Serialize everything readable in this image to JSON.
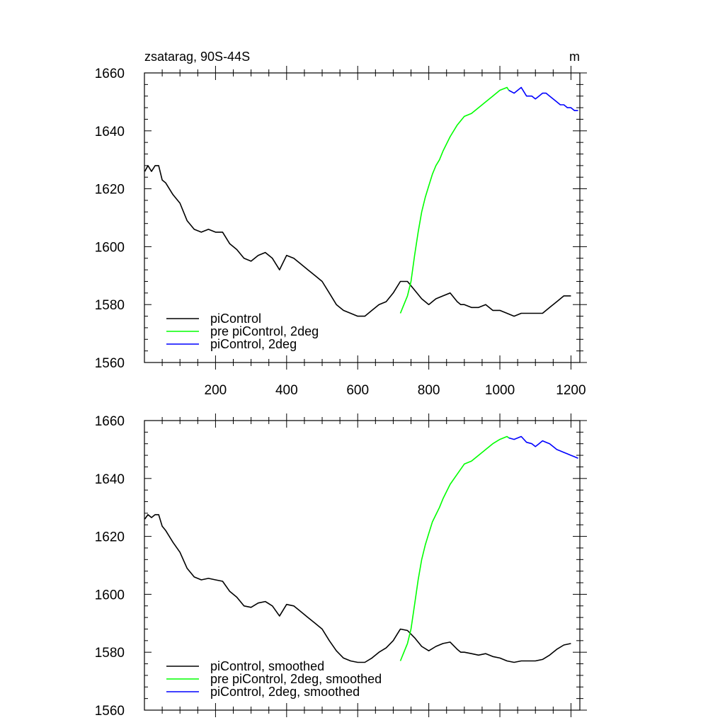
{
  "figure": {
    "title_left": "zsatarag, 90S-44S",
    "title_right": "m"
  },
  "colors": {
    "piControl": "#000000",
    "pre_piControl_2deg": "#00ff00",
    "piControl_2deg": "#0000ff"
  },
  "chart_data": [
    {
      "type": "line",
      "xlim": [
        0,
        1225
      ],
      "ylim": [
        1560,
        1660
      ],
      "x_ticks": [
        200,
        400,
        600,
        800,
        1000,
        1200
      ],
      "x_tick_labels": [
        "200",
        "400",
        "600",
        "800",
        "1000",
        "1200"
      ],
      "y_ticks": [
        1560,
        1580,
        1600,
        1620,
        1640,
        1660
      ],
      "y_tick_labels": [
        "1560",
        "1580",
        "1600",
        "1620",
        "1640",
        "1660"
      ],
      "show_x_tick_labels": true,
      "legend_position": "bottom-left",
      "series": [
        {
          "name": "piControl",
          "color_key": "piControl",
          "x": [
            1,
            10,
            20,
            30,
            40,
            50,
            60,
            80,
            100,
            120,
            140,
            160,
            180,
            200,
            220,
            240,
            260,
            280,
            300,
            320,
            340,
            360,
            380,
            400,
            420,
            440,
            460,
            480,
            500,
            520,
            540,
            560,
            580,
            600,
            620,
            640,
            660,
            680,
            700,
            710,
            720,
            740,
            760,
            780,
            800,
            820,
            840,
            860,
            880,
            890,
            900,
            920,
            940,
            960,
            980,
            1000,
            1020,
            1040,
            1060,
            1080,
            1100,
            1120,
            1140,
            1160,
            1180,
            1200
          ],
          "y": [
            1626,
            1628,
            1626,
            1628,
            1628,
            1623,
            1622,
            1618,
            1615,
            1609,
            1606,
            1605,
            1606,
            1605,
            1605,
            1601,
            1599,
            1596,
            1595,
            1597,
            1598,
            1596,
            1592,
            1597,
            1596,
            1594,
            1592,
            1590,
            1588,
            1584,
            1580,
            1578,
            1577,
            1576,
            1576,
            1578,
            1580,
            1581,
            1584,
            1586,
            1588,
            1588,
            1585,
            1582,
            1580,
            1582,
            1583,
            1584,
            1581,
            1580,
            1580,
            1579,
            1579,
            1580,
            1578,
            1578,
            1577,
            1576,
            1577,
            1577,
            1577,
            1577,
            1579,
            1581,
            1583,
            1583
          ]
        },
        {
          "name": "pre piControl, 2deg",
          "color_key": "pre_piControl_2deg",
          "x": [
            720,
            730,
            740,
            750,
            760,
            770,
            780,
            790,
            800,
            810,
            820,
            830,
            840,
            860,
            880,
            900,
            920,
            940,
            960,
            980,
            1000,
            1020,
            1025
          ],
          "y": [
            1577,
            1580,
            1583,
            1588,
            1597,
            1605,
            1612,
            1617,
            1621,
            1625,
            1628,
            1630,
            1633,
            1638,
            1642,
            1645,
            1646,
            1648,
            1650,
            1652,
            1654,
            1655,
            1654
          ]
        },
        {
          "name": "piControl, 2deg",
          "color_key": "piControl_2deg",
          "x": [
            1025,
            1040,
            1060,
            1075,
            1090,
            1100,
            1110,
            1120,
            1130,
            1140,
            1150,
            1160,
            1170,
            1180,
            1190,
            1200,
            1210,
            1220
          ],
          "y": [
            1654,
            1653,
            1655,
            1652,
            1652,
            1651,
            1652,
            1653,
            1653,
            1652,
            1651,
            1650,
            1649,
            1649,
            1648,
            1648,
            1647,
            1647
          ]
        }
      ]
    },
    {
      "type": "line",
      "xlim": [
        0,
        1225
      ],
      "ylim": [
        1560,
        1660
      ],
      "x_ticks": [
        200,
        400,
        600,
        800,
        1000,
        1200
      ],
      "y_ticks": [
        1560,
        1580,
        1600,
        1620,
        1640,
        1660
      ],
      "y_tick_labels": [
        "1560",
        "1580",
        "1600",
        "1620",
        "1640",
        "1660"
      ],
      "show_x_tick_labels": false,
      "legend_position": "bottom-left",
      "series": [
        {
          "name": "piControl, smoothed",
          "color_key": "piControl",
          "x": [
            1,
            10,
            20,
            30,
            40,
            50,
            60,
            80,
            100,
            120,
            140,
            160,
            180,
            200,
            220,
            240,
            260,
            280,
            300,
            320,
            340,
            360,
            380,
            400,
            420,
            440,
            460,
            480,
            500,
            520,
            540,
            560,
            580,
            600,
            620,
            640,
            660,
            680,
            700,
            710,
            720,
            740,
            760,
            780,
            800,
            820,
            840,
            860,
            880,
            890,
            900,
            920,
            940,
            960,
            980,
            1000,
            1020,
            1040,
            1060,
            1080,
            1100,
            1120,
            1140,
            1160,
            1180,
            1200
          ],
          "y": [
            1626,
            1627.5,
            1626.5,
            1627.5,
            1627.5,
            1623.5,
            1622,
            1618,
            1614.5,
            1609,
            1606,
            1605,
            1605.5,
            1605,
            1604.5,
            1601,
            1599,
            1596,
            1595.5,
            1597,
            1597.5,
            1596,
            1592.5,
            1596.5,
            1596,
            1594,
            1592,
            1590,
            1588,
            1584,
            1580.5,
            1578,
            1577,
            1576.5,
            1576.5,
            1578,
            1580,
            1581.5,
            1584,
            1586,
            1588,
            1587.5,
            1585,
            1582,
            1580.5,
            1582,
            1583,
            1583.5,
            1581,
            1580,
            1580,
            1579.5,
            1579,
            1579.5,
            1578.5,
            1578,
            1577,
            1576.5,
            1577,
            1577,
            1577,
            1577.5,
            1579,
            1581,
            1582.5,
            1583
          ]
        },
        {
          "name": "pre piControl, 2deg, smoothed",
          "color_key": "pre_piControl_2deg",
          "x": [
            720,
            730,
            740,
            750,
            760,
            770,
            780,
            790,
            800,
            810,
            820,
            830,
            840,
            860,
            880,
            900,
            920,
            940,
            960,
            980,
            1000,
            1020,
            1025
          ],
          "y": [
            1577,
            1580,
            1583,
            1588,
            1596.5,
            1605,
            1612,
            1617,
            1621,
            1625,
            1627.5,
            1630,
            1633,
            1638,
            1641.5,
            1645,
            1646,
            1648,
            1650,
            1652,
            1653.5,
            1654.5,
            1654
          ]
        },
        {
          "name": "piControl, 2deg, smoothed",
          "color_key": "piControl_2deg",
          "x": [
            1025,
            1040,
            1060,
            1075,
            1090,
            1100,
            1110,
            1120,
            1130,
            1140,
            1150,
            1160,
            1170,
            1180,
            1190,
            1200,
            1210,
            1220
          ],
          "y": [
            1654,
            1653.5,
            1654.5,
            1652.5,
            1652,
            1651,
            1652,
            1653,
            1652.5,
            1652,
            1651,
            1650,
            1649.5,
            1649,
            1648.5,
            1648,
            1647.5,
            1647
          ]
        }
      ]
    }
  ]
}
